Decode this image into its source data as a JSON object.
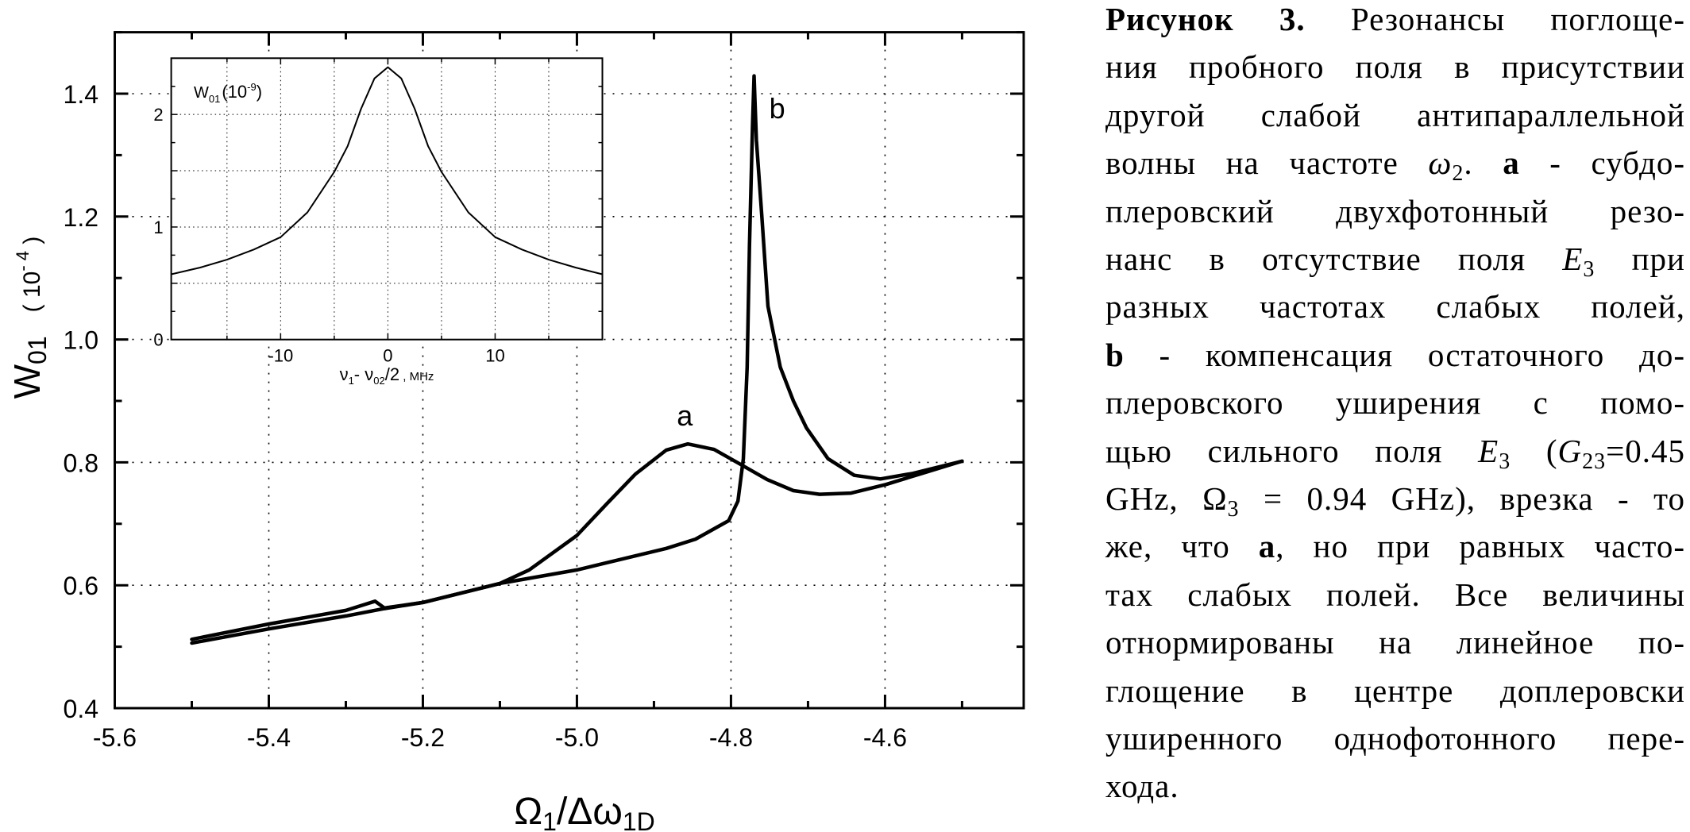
{
  "chart_data": [
    {
      "type": "line",
      "xlabel": {
        "main": "Ω",
        "sub1": "1",
        "slash": "/Δω",
        "sub2": "1D"
      },
      "ylabel": {
        "main": "W",
        "sub": "01",
        "open": "( 10",
        "sup": "- 4",
        "close": " )"
      },
      "xlim": [
        -5.6,
        -4.42
      ],
      "ylim": [
        0.4,
        1.5
      ],
      "x_ticks": [
        -5.6,
        -5.4,
        -5.2,
        -5.0,
        -4.8,
        -4.6
      ],
      "x_tick_labels": [
        "-5.6",
        "-5.4",
        "-5.2",
        "-5.0",
        "-4.8",
        "-4.6"
      ],
      "y_ticks": [
        0.4,
        0.6,
        0.8,
        1.0,
        1.2,
        1.4
      ],
      "y_tick_labels": [
        "0.4",
        "0.6",
        "0.8",
        "1.0",
        "1.2",
        "1.4"
      ],
      "grid": "dotted at major ticks",
      "line_color": "#000000",
      "series": [
        {
          "name": "a",
          "label_at": [
            -4.86,
            0.86
          ],
          "points": [
            [
              -5.5,
              0.512
            ],
            [
              -5.4,
              0.537
            ],
            [
              -5.3,
              0.559
            ],
            [
              -5.262,
              0.574
            ],
            [
              -5.25,
              0.563
            ],
            [
              -5.2,
              0.572
            ],
            [
              -5.1,
              0.603
            ],
            [
              -5.062,
              0.625
            ],
            [
              -5.0,
              0.681
            ],
            [
              -4.961,
              0.733
            ],
            [
              -4.924,
              0.781
            ],
            [
              -4.884,
              0.82
            ],
            [
              -4.856,
              0.83
            ],
            [
              -4.822,
              0.821
            ],
            [
              -4.788,
              0.797
            ],
            [
              -4.753,
              0.772
            ],
            [
              -4.719,
              0.754
            ],
            [
              -4.685,
              0.748
            ],
            [
              -4.644,
              0.75
            ],
            [
              -4.599,
              0.764
            ],
            [
              -4.547,
              0.784
            ],
            [
              -4.5,
              0.802
            ]
          ]
        },
        {
          "name": "b",
          "label_at": [
            -4.74,
            1.36
          ],
          "points": [
            [
              -5.5,
              0.506
            ],
            [
              -5.4,
              0.529
            ],
            [
              -5.3,
              0.55
            ],
            [
              -5.25,
              0.562
            ],
            [
              -5.2,
              0.572
            ],
            [
              -5.1,
              0.603
            ],
            [
              -5.0,
              0.625
            ],
            [
              -4.884,
              0.66
            ],
            [
              -4.846,
              0.675
            ],
            [
              -4.803,
              0.705
            ],
            [
              -4.791,
              0.737
            ],
            [
              -4.784,
              0.806
            ],
            [
              -4.779,
              0.955
            ],
            [
              -4.776,
              1.152
            ],
            [
              -4.772,
              1.35
            ],
            [
              -4.77,
              1.429
            ],
            [
              -4.767,
              1.325
            ],
            [
              -4.76,
              1.202
            ],
            [
              -4.752,
              1.054
            ],
            [
              -4.736,
              0.955
            ],
            [
              -4.719,
              0.9
            ],
            [
              -4.702,
              0.856
            ],
            [
              -4.674,
              0.806
            ],
            [
              -4.64,
              0.779
            ],
            [
              -4.606,
              0.773
            ],
            [
              -4.564,
              0.782
            ],
            [
              -4.5,
              0.802
            ]
          ]
        }
      ]
    },
    {
      "type": "line",
      "role": "inset",
      "title": {
        "main": "W",
        "sub": "01",
        "open": "(10",
        "sup": "-9",
        "close": ")"
      },
      "xlabel": {
        "nu1": "ν",
        "sub1": "1",
        "dash": "- ν",
        "sub2": "02",
        "rest": "/2",
        "unit": " , MHz"
      },
      "xlim": [
        -20.2,
        20
      ],
      "ylim": [
        0,
        2.5
      ],
      "x_ticks": [
        -10,
        0,
        10
      ],
      "x_tick_labels": [
        "-10",
        "0",
        "10"
      ],
      "y_ticks": [
        0,
        1,
        2
      ],
      "y_tick_labels": [
        "0",
        "1",
        "2"
      ],
      "grid": "dotted",
      "points": [
        [
          -20.2,
          0.58
        ],
        [
          -17.5,
          0.64
        ],
        [
          -15,
          0.71
        ],
        [
          -12.5,
          0.8
        ],
        [
          -10,
          0.91
        ],
        [
          -7.5,
          1.13
        ],
        [
          -5,
          1.49
        ],
        [
          -3.75,
          1.72
        ],
        [
          -2.5,
          2.05
        ],
        [
          -1.25,
          2.32
        ],
        [
          0,
          2.42
        ],
        [
          1.25,
          2.32
        ],
        [
          2.5,
          2.05
        ],
        [
          3.75,
          1.72
        ],
        [
          5,
          1.49
        ],
        [
          7.5,
          1.13
        ],
        [
          10,
          0.91
        ],
        [
          12.5,
          0.8
        ],
        [
          15,
          0.71
        ],
        [
          17.5,
          0.64
        ],
        [
          20,
          0.58
        ]
      ]
    }
  ],
  "caption": {
    "lines": [
      [
        {
          "t": "Рисунок 3.",
          "s": "b"
        },
        {
          "t": " Резонансы поглоще-"
        }
      ],
      [
        {
          "t": "ния пробного поля в присутствии"
        }
      ],
      [
        {
          "t": "другой слабой антипараллельной"
        }
      ],
      [
        {
          "t": "волны на частоте "
        },
        {
          "t": "ω",
          "s": "i"
        },
        {
          "t": "2",
          "s": "sub"
        },
        {
          "t": ". "
        },
        {
          "t": "a",
          "s": "b"
        },
        {
          "t": " - субдо-"
        }
      ],
      [
        {
          "t": "плеровский двухфотонный резо-"
        }
      ],
      [
        {
          "t": "нанс в отсутствие поля "
        },
        {
          "t": "E",
          "s": "i"
        },
        {
          "t": "3",
          "s": "sub"
        },
        {
          "t": " при"
        }
      ],
      [
        {
          "t": "разных частотах слабых полей,"
        }
      ],
      [
        {
          "t": "b",
          "s": "b"
        },
        {
          "t": " - компенсация остаточного до-"
        }
      ],
      [
        {
          "t": "плеровского уширения с помо-"
        }
      ],
      [
        {
          "t": "щью сильного поля "
        },
        {
          "t": "E",
          "s": "i"
        },
        {
          "t": "3",
          "s": "sub"
        },
        {
          "t": " ("
        },
        {
          "t": "G",
          "s": "i"
        },
        {
          "t": "23",
          "s": "sub"
        },
        {
          "t": "=0.45"
        }
      ],
      [
        {
          "t": "GHz, Ω"
        },
        {
          "t": "3",
          "s": "sub"
        },
        {
          "t": " = 0.94 GHz), врезка - то"
        }
      ],
      [
        {
          "t": "же, что "
        },
        {
          "t": "a",
          "s": "b"
        },
        {
          "t": ", но при равных часто-"
        }
      ],
      [
        {
          "t": "тах слабых полей. Все величины"
        }
      ],
      [
        {
          "t": "отнормированы на линейное по-"
        }
      ],
      [
        {
          "t": "глощение в центре доплеровски"
        }
      ],
      [
        {
          "t": "уширенного однофотонного пере-"
        }
      ],
      [
        {
          "t": "хода."
        }
      ]
    ]
  }
}
